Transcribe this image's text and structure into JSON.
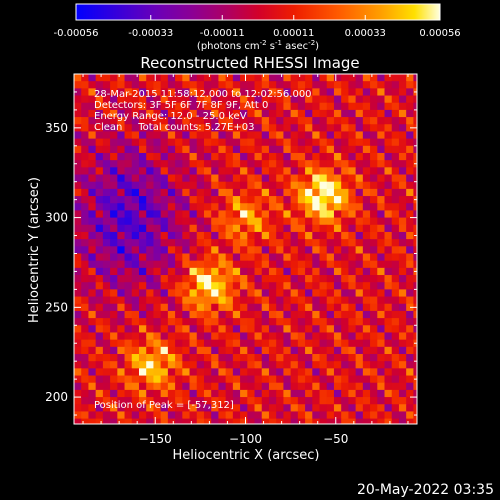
{
  "chart_data": {
    "type": "heatmap",
    "title": "Reconstructed RHESSI Image",
    "xlabel": "Heliocentric X (arcsec)",
    "ylabel": "Heliocentric Y (arcsec)",
    "xlim": [
      -195,
      -5
    ],
    "ylim": [
      185,
      380
    ],
    "x_ticks": [
      -150,
      -100,
      -50
    ],
    "y_ticks": [
      200,
      250,
      300,
      350
    ],
    "colorbar": {
      "colormap": "rhessi-color-table",
      "range": [
        -0.00056,
        0.00056
      ],
      "tick_values": [
        -0.00056,
        -0.00033,
        -0.00011,
        0.00011,
        0.00033,
        0.00056
      ],
      "tick_labels": [
        "-0.00056",
        "-0.00033",
        "-0.00011",
        "0.00011",
        "0.00033",
        "0.00056"
      ],
      "units_label": "(photons cm",
      "units_exp1": "-2",
      "units_mid": " s",
      "units_exp2": "-1",
      "units_end": " asec",
      "units_exp3": "-2",
      "units_close": ")"
    },
    "annotations": [
      "28-Mar-2015 11:58:12.000 to 12:02:56.000",
      "Detectors: 3F 5F 6F 7F 8F 9F, Att 0",
      "Energy Range: 12.0 - 25.0 keV",
      "Clean     Total counts: 5.27E+03"
    ],
    "peak_label": "Position of Peak = [-57,312]",
    "peak_position": [
      -57,
      312
    ],
    "bright_sources": [
      {
        "x": -57,
        "y": 312,
        "value": 0.00056
      },
      {
        "x": -120,
        "y": 262,
        "value": 0.00048
      },
      {
        "x": -152,
        "y": 218,
        "value": 0.0004
      },
      {
        "x": -100,
        "y": 300,
        "value": 0.0003
      }
    ],
    "dim_region": {
      "x": -165,
      "y": 300,
      "value": -0.0004
    }
  },
  "footer": {
    "timestamp": "20-May-2022 03:35"
  }
}
